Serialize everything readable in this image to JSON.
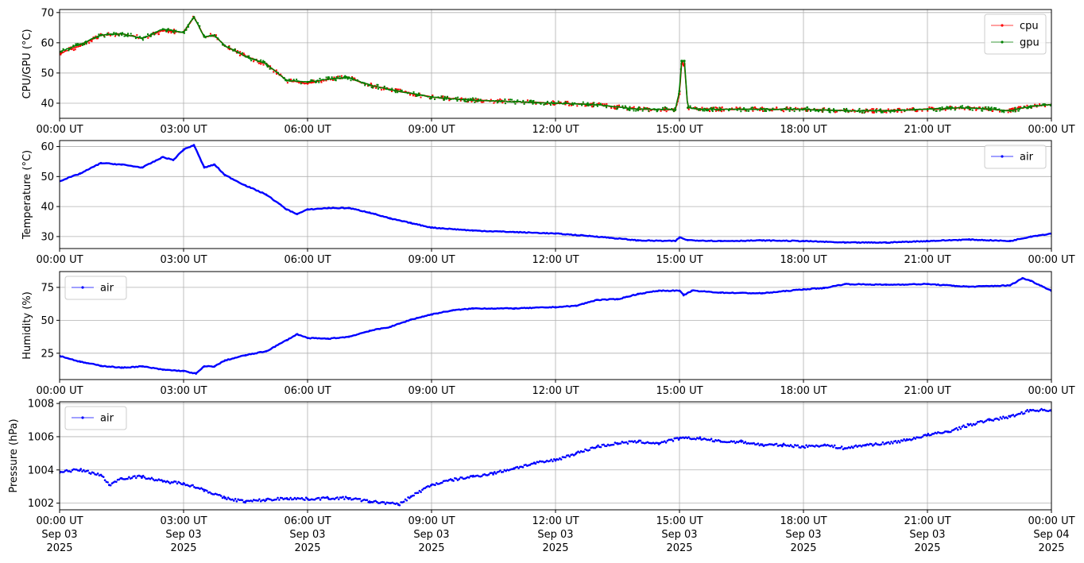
{
  "colors": {
    "cpu": "#ff0000",
    "gpu": "#008000",
    "air": "#0000ff",
    "grid": "#b0b0b0"
  },
  "chart_data": [
    {
      "type": "line",
      "ylabel": "CPU/GPU (°C)",
      "xlim": [
        0,
        24
      ],
      "ylim": [
        35,
        71
      ],
      "yticks": [
        40,
        50,
        60,
        70
      ],
      "x_ticks": [
        {
          "x": 0,
          "label": "00:00 UT"
        },
        {
          "x": 3,
          "label": "03:00 UT"
        },
        {
          "x": 6,
          "label": "06:00 UT"
        },
        {
          "x": 9,
          "label": "09:00 UT"
        },
        {
          "x": 12,
          "label": "12:00 UT"
        },
        {
          "x": 15,
          "label": "15:00 UT"
        },
        {
          "x": 18,
          "label": "18:00 UT"
        },
        {
          "x": 21,
          "label": "21:00 UT"
        },
        {
          "x": 24,
          "label": "00:00 UT"
        }
      ],
      "grid": true,
      "legend": "upper-right",
      "series": [
        {
          "name": "cpu",
          "color": "#ff0000",
          "points": [
            [
              0,
              56.5
            ],
            [
              0.5,
              59
            ],
            [
              1,
              62.5
            ],
            [
              1.5,
              63
            ],
            [
              2,
              61.5
            ],
            [
              2.5,
              64
            ],
            [
              3,
              63.5
            ],
            [
              3.25,
              68.5
            ],
            [
              3.5,
              62
            ],
            [
              3.75,
              62.5
            ],
            [
              4,
              59
            ],
            [
              4.5,
              55.5
            ],
            [
              5,
              53
            ],
            [
              5.5,
              47.5
            ],
            [
              6,
              46.5
            ],
            [
              6.5,
              48
            ],
            [
              7,
              48.5
            ],
            [
              7.5,
              46
            ],
            [
              8,
              44.5
            ],
            [
              9,
              42
            ],
            [
              10,
              41
            ],
            [
              11,
              40.5
            ],
            [
              12,
              40
            ],
            [
              13,
              39.5
            ],
            [
              14,
              38
            ],
            [
              14.9,
              38
            ],
            [
              15,
              43
            ],
            [
              15.05,
              53
            ],
            [
              15.12,
              53
            ],
            [
              15.2,
              38.5
            ],
            [
              15.5,
              38
            ],
            [
              16,
              38
            ],
            [
              17,
              38
            ],
            [
              18,
              38
            ],
            [
              19,
              37.5
            ],
            [
              20,
              37.5
            ],
            [
              21,
              38
            ],
            [
              22,
              38.5
            ],
            [
              23,
              37.5
            ],
            [
              23.5,
              39
            ],
            [
              24,
              39.5
            ]
          ]
        },
        {
          "name": "gpu",
          "color": "#008000",
          "points": [
            [
              0,
              57
            ],
            [
              0.5,
              59.5
            ],
            [
              1,
              62.5
            ],
            [
              1.5,
              63
            ],
            [
              2,
              61.5
            ],
            [
              2.5,
              64.5
            ],
            [
              3,
              63.5
            ],
            [
              3.25,
              68.5
            ],
            [
              3.5,
              62
            ],
            [
              3.75,
              62.5
            ],
            [
              4,
              59
            ],
            [
              4.5,
              55.5
            ],
            [
              5,
              53
            ],
            [
              5.5,
              47.5
            ],
            [
              6,
              47
            ],
            [
              6.5,
              48
            ],
            [
              7,
              48.5
            ],
            [
              7.5,
              46
            ],
            [
              8,
              44.5
            ],
            [
              9,
              42
            ],
            [
              10,
              41
            ],
            [
              11,
              40.5
            ],
            [
              12,
              40
            ],
            [
              13,
              39.5
            ],
            [
              14,
              38
            ],
            [
              14.9,
              38
            ],
            [
              15,
              44
            ],
            [
              15.05,
              54
            ],
            [
              15.12,
              54
            ],
            [
              15.2,
              38.5
            ],
            [
              15.5,
              38
            ],
            [
              16,
              38
            ],
            [
              17,
              38
            ],
            [
              18,
              38
            ],
            [
              19,
              37.5
            ],
            [
              20,
              37.5
            ],
            [
              21,
              38
            ],
            [
              22,
              38.5
            ],
            [
              23,
              37.5
            ],
            [
              23.5,
              39
            ],
            [
              24,
              39.5
            ]
          ]
        }
      ]
    },
    {
      "type": "line",
      "ylabel": "Temperature (°C)",
      "xlim": [
        0,
        24
      ],
      "ylim": [
        26,
        62
      ],
      "yticks": [
        30,
        40,
        50,
        60
      ],
      "x_ticks": [
        {
          "x": 0,
          "label": "00:00 UT"
        },
        {
          "x": 3,
          "label": "03:00 UT"
        },
        {
          "x": 6,
          "label": "06:00 UT"
        },
        {
          "x": 9,
          "label": "09:00 UT"
        },
        {
          "x": 12,
          "label": "12:00 UT"
        },
        {
          "x": 15,
          "label": "15:00 UT"
        },
        {
          "x": 18,
          "label": "18:00 UT"
        },
        {
          "x": 21,
          "label": "21:00 UT"
        },
        {
          "x": 24,
          "label": "00:00 UT"
        }
      ],
      "grid": true,
      "legend": "upper-right",
      "series": [
        {
          "name": "air",
          "color": "#0000ff",
          "points": [
            [
              0,
              48.5
            ],
            [
              0.5,
              51
            ],
            [
              1,
              54.5
            ],
            [
              1.5,
              54
            ],
            [
              2,
              53
            ],
            [
              2.5,
              56.5
            ],
            [
              2.75,
              55.5
            ],
            [
              3,
              59
            ],
            [
              3.25,
              60.5
            ],
            [
              3.5,
              53
            ],
            [
              3.75,
              54
            ],
            [
              4,
              50.5
            ],
            [
              4.5,
              47
            ],
            [
              5,
              44
            ],
            [
              5.5,
              39
            ],
            [
              5.75,
              37.5
            ],
            [
              6,
              39
            ],
            [
              6.5,
              39.5
            ],
            [
              7,
              39.5
            ],
            [
              7.5,
              38
            ],
            [
              8,
              36
            ],
            [
              8.5,
              34.5
            ],
            [
              9,
              33
            ],
            [
              10,
              32
            ],
            [
              11,
              31.5
            ],
            [
              12,
              31
            ],
            [
              13,
              30
            ],
            [
              14,
              28.7
            ],
            [
              14.9,
              28.5
            ],
            [
              15,
              29.7
            ],
            [
              15.2,
              28.8
            ],
            [
              16,
              28.5
            ],
            [
              17,
              28.7
            ],
            [
              18,
              28.5
            ],
            [
              19,
              28
            ],
            [
              20,
              28
            ],
            [
              21,
              28.5
            ],
            [
              22,
              29
            ],
            [
              23,
              28.5
            ],
            [
              23.5,
              30
            ],
            [
              24,
              31
            ]
          ]
        }
      ]
    },
    {
      "type": "line",
      "ylabel": "Humidity (%)",
      "xlim": [
        0,
        24
      ],
      "ylim": [
        5,
        87
      ],
      "yticks": [
        25,
        50,
        75
      ],
      "x_ticks": [
        {
          "x": 0,
          "label": "00:00 UT"
        },
        {
          "x": 3,
          "label": "03:00 UT"
        },
        {
          "x": 6,
          "label": "06:00 UT"
        },
        {
          "x": 9,
          "label": "09:00 UT"
        },
        {
          "x": 12,
          "label": "12:00 UT"
        },
        {
          "x": 15,
          "label": "15:00 UT"
        },
        {
          "x": 18,
          "label": "18:00 UT"
        },
        {
          "x": 21,
          "label": "21:00 UT"
        },
        {
          "x": 24,
          "label": "00:00 UT"
        }
      ],
      "grid": true,
      "legend": "upper-left",
      "series": [
        {
          "name": "air",
          "color": "#0000ff",
          "points": [
            [
              0,
              23
            ],
            [
              0.5,
              18.5
            ],
            [
              1,
              15.5
            ],
            [
              1.5,
              14
            ],
            [
              2,
              15
            ],
            [
              2.5,
              12.5
            ],
            [
              3,
              11.5
            ],
            [
              3.3,
              9.5
            ],
            [
              3.5,
              15
            ],
            [
              3.75,
              15
            ],
            [
              4,
              19.5
            ],
            [
              4.5,
              23.5
            ],
            [
              5,
              26.5
            ],
            [
              5.5,
              35
            ],
            [
              5.75,
              39.5
            ],
            [
              6,
              36.5
            ],
            [
              6.5,
              36
            ],
            [
              7,
              37.5
            ],
            [
              7.5,
              42
            ],
            [
              8,
              45
            ],
            [
              8.5,
              50.5
            ],
            [
              9,
              54.5
            ],
            [
              9.5,
              57.5
            ],
            [
              10,
              59
            ],
            [
              11,
              59
            ],
            [
              12,
              60
            ],
            [
              12.5,
              61
            ],
            [
              13,
              65.5
            ],
            [
              13.5,
              66
            ],
            [
              14,
              70
            ],
            [
              14.5,
              72.5
            ],
            [
              15,
              72.5
            ],
            [
              15.1,
              69
            ],
            [
              15.3,
              72.5
            ],
            [
              16,
              71
            ],
            [
              17,
              70.5
            ],
            [
              18,
              73.5
            ],
            [
              18.5,
              74.5
            ],
            [
              19,
              77.5
            ],
            [
              20,
              77
            ],
            [
              21,
              77.5
            ],
            [
              22,
              75.5
            ],
            [
              23,
              76.5
            ],
            [
              23.3,
              82
            ],
            [
              23.5,
              80
            ],
            [
              24,
              72.5
            ]
          ]
        }
      ]
    },
    {
      "type": "scatter",
      "ylabel": "Pressure (hPa)",
      "xlim": [
        0,
        24
      ],
      "ylim": [
        1001.6,
        1008.1
      ],
      "yticks": [
        1002,
        1004,
        1006,
        1008
      ],
      "x_ticks": [
        {
          "x": 0,
          "label": "00:00 UT",
          "sub1": "Sep 03",
          "sub2": "2025"
        },
        {
          "x": 3,
          "label": "03:00 UT",
          "sub1": "Sep 03",
          "sub2": "2025"
        },
        {
          "x": 6,
          "label": "06:00 UT",
          "sub1": "Sep 03",
          "sub2": "2025"
        },
        {
          "x": 9,
          "label": "09:00 UT",
          "sub1": "Sep 03",
          "sub2": "2025"
        },
        {
          "x": 12,
          "label": "12:00 UT",
          "sub1": "Sep 03",
          "sub2": "2025"
        },
        {
          "x": 15,
          "label": "15:00 UT",
          "sub1": "Sep 03",
          "sub2": "2025"
        },
        {
          "x": 18,
          "label": "18:00 UT",
          "sub1": "Sep 03",
          "sub2": "2025"
        },
        {
          "x": 21,
          "label": "21:00 UT",
          "sub1": "Sep 03",
          "sub2": "2025"
        },
        {
          "x": 24,
          "label": "00:00 UT",
          "sub1": "Sep 04",
          "sub2": "2025"
        }
      ],
      "grid": true,
      "legend": "upper-left",
      "series": [
        {
          "name": "air",
          "color": "#0000ff",
          "points": [
            [
              0,
              1003.9
            ],
            [
              0.5,
              1004
            ],
            [
              1,
              1003.7
            ],
            [
              1.2,
              1003.1
            ],
            [
              1.5,
              1003.5
            ],
            [
              2,
              1003.6
            ],
            [
              2.5,
              1003.3
            ],
            [
              3,
              1003.2
            ],
            [
              3.5,
              1002.8
            ],
            [
              4,
              1002.3
            ],
            [
              4.5,
              1002.1
            ],
            [
              5,
              1002.2
            ],
            [
              5.5,
              1002.3
            ],
            [
              6,
              1002.25
            ],
            [
              6.5,
              1002.3
            ],
            [
              7,
              1002.3
            ],
            [
              7.5,
              1002.1
            ],
            [
              8,
              1002
            ],
            [
              8.2,
              1001.9
            ],
            [
              8.5,
              1002.4
            ],
            [
              9,
              1003.1
            ],
            [
              9.5,
              1003.4
            ],
            [
              10,
              1003.6
            ],
            [
              10.5,
              1003.8
            ],
            [
              11,
              1004.1
            ],
            [
              11.5,
              1004.4
            ],
            [
              12,
              1004.6
            ],
            [
              12.5,
              1005
            ],
            [
              13,
              1005.4
            ],
            [
              13.5,
              1005.6
            ],
            [
              14,
              1005.7
            ],
            [
              14.5,
              1005.6
            ],
            [
              15,
              1005.9
            ],
            [
              15.5,
              1005.9
            ],
            [
              16,
              1005.7
            ],
            [
              16.5,
              1005.7
            ],
            [
              17,
              1005.5
            ],
            [
              17.5,
              1005.5
            ],
            [
              18,
              1005.4
            ],
            [
              18.5,
              1005.5
            ],
            [
              19,
              1005.3
            ],
            [
              19.5,
              1005.5
            ],
            [
              20,
              1005.6
            ],
            [
              20.5,
              1005.8
            ],
            [
              21,
              1006.1
            ],
            [
              21.5,
              1006.3
            ],
            [
              22,
              1006.7
            ],
            [
              22.5,
              1007
            ],
            [
              23,
              1007.2
            ],
            [
              23.5,
              1007.6
            ],
            [
              24,
              1007.6
            ]
          ]
        }
      ]
    }
  ]
}
